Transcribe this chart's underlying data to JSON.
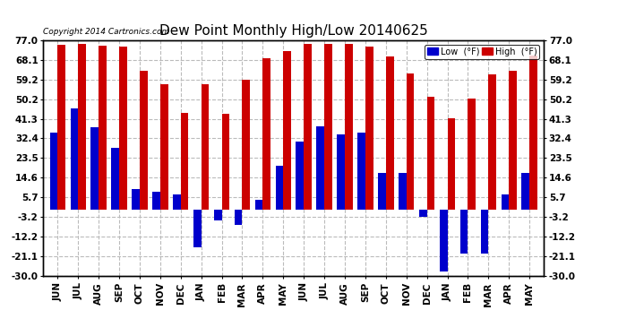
{
  "title": "Dew Point Monthly High/Low 20140625",
  "copyright": "Copyright 2014 Cartronics.com",
  "categories": [
    "JUN",
    "JUL",
    "AUG",
    "SEP",
    "OCT",
    "NOV",
    "DEC",
    "JAN",
    "FEB",
    "MAR",
    "APR",
    "MAY",
    "JUN",
    "JUL",
    "AUG",
    "SEP",
    "OCT",
    "NOV",
    "DEC",
    "JAN",
    "FEB",
    "MAR",
    "APR",
    "MAY"
  ],
  "high_values": [
    75.0,
    75.5,
    74.5,
    74.0,
    63.0,
    57.0,
    44.0,
    57.0,
    43.5,
    59.0,
    69.0,
    72.0,
    75.5,
    75.5,
    75.5,
    74.0,
    69.5,
    62.0,
    51.5,
    41.5,
    50.5,
    61.5,
    63.0,
    70.0
  ],
  "low_values": [
    35.0,
    46.0,
    37.5,
    28.0,
    9.5,
    8.0,
    7.0,
    -17.0,
    -5.0,
    -7.0,
    4.5,
    20.0,
    31.0,
    38.0,
    34.0,
    35.0,
    16.5,
    16.5,
    -3.5,
    -28.0,
    -20.0,
    -20.0,
    7.0,
    16.5
  ],
  "high_color": "#cc0000",
  "low_color": "#0000cc",
  "ylim": [
    -30.0,
    77.0
  ],
  "yticks": [
    77.0,
    68.1,
    59.2,
    50.2,
    41.3,
    32.4,
    23.5,
    14.6,
    5.7,
    -3.2,
    -12.2,
    -21.1,
    -30.0
  ],
  "background_color": "#ffffff",
  "grid_color": "#bbbbbb",
  "title_fontsize": 11,
  "tick_fontsize": 7.5,
  "legend_low_label": "Low  (°F)",
  "legend_high_label": "High  (°F)"
}
